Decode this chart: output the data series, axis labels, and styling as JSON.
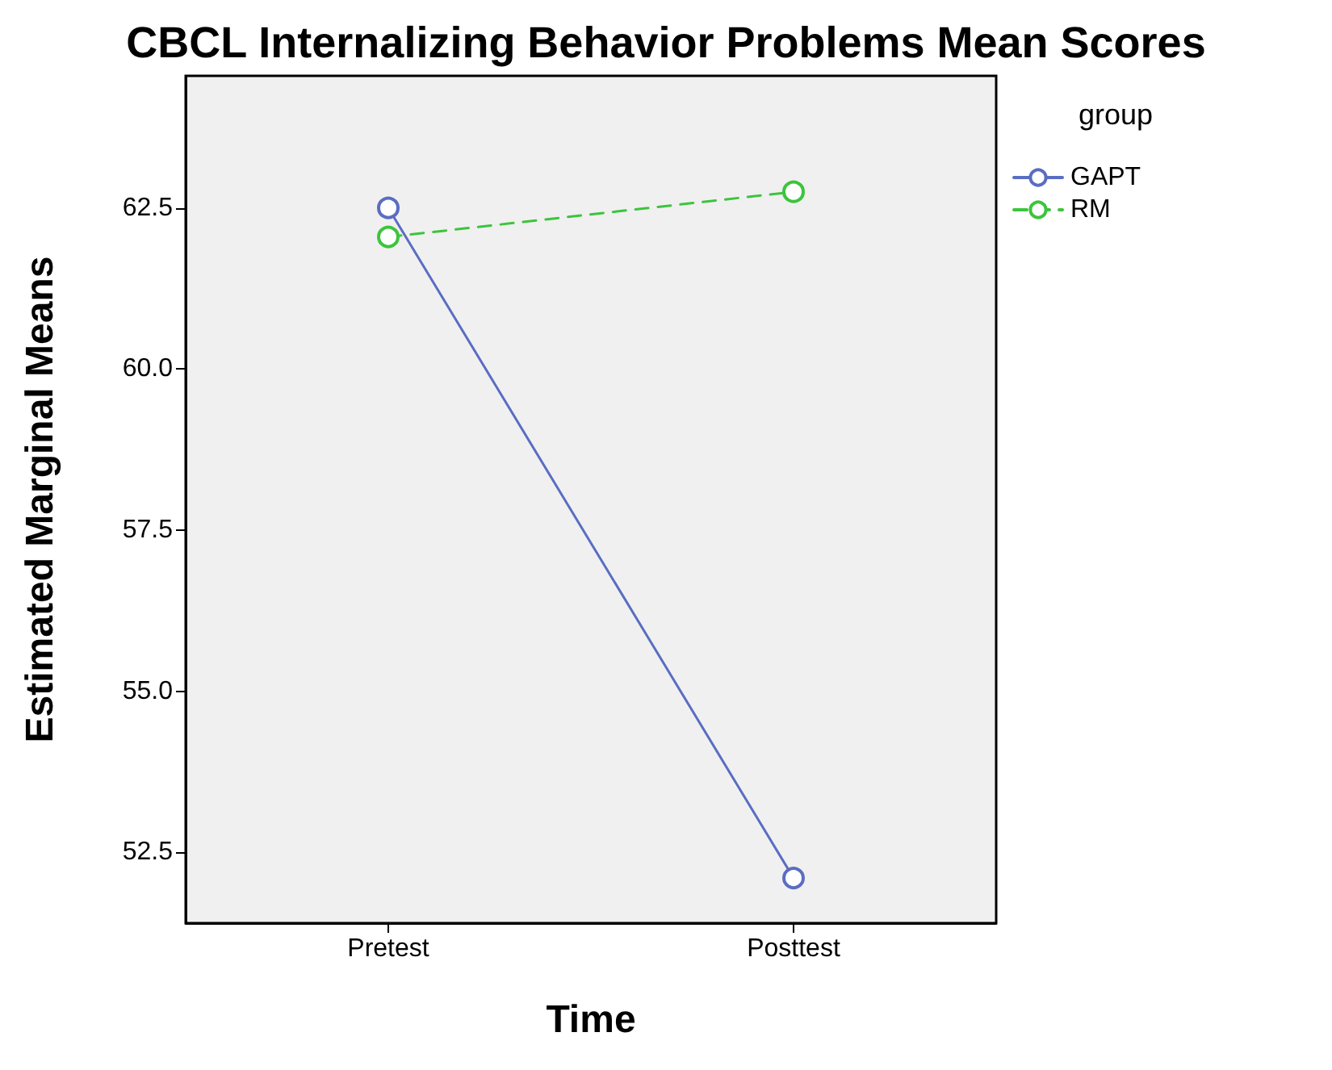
{
  "chart_data": {
    "type": "line",
    "title": "CBCL Internalizing Behavior Problems Mean Scores",
    "xlabel": "Time",
    "ylabel": "Estimated Marginal Means",
    "legend_title": "group",
    "categories": [
      "Pretest",
      "Posttest"
    ],
    "series": [
      {
        "name": "GAPT",
        "color": "#5a6dc2",
        "values": [
          62.5,
          52.1
        ],
        "line_style": "solid"
      },
      {
        "name": "RM",
        "color": "#3cc43c",
        "values": [
          62.05,
          62.75
        ],
        "line_style": "dashed"
      }
    ],
    "ylim": [
      51.4,
      64.55
    ],
    "yticks": [
      {
        "value": 52.5,
        "label": "52.5"
      },
      {
        "value": 55,
        "label": "55.0"
      },
      {
        "value": 57.5,
        "label": "57.5"
      },
      {
        "value": 60,
        "label": "60.0"
      },
      {
        "value": 62.5,
        "label": "62.5"
      }
    ],
    "marker": "circle",
    "grid": false,
    "legend": "top right"
  }
}
